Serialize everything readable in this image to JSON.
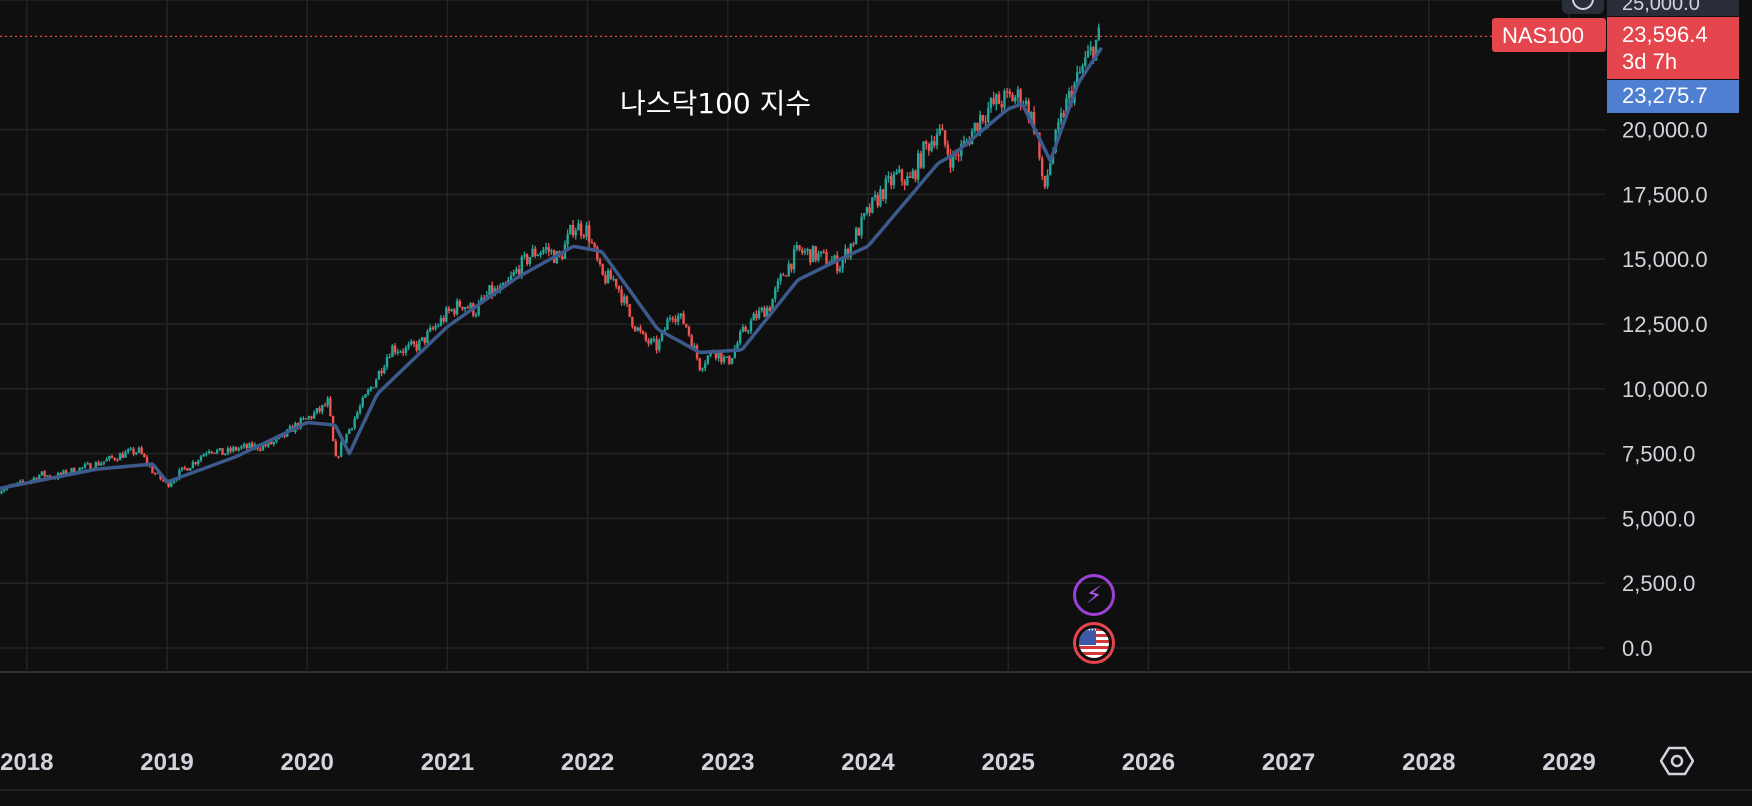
{
  "chart_data": {
    "type": "candlestick",
    "title": "나스닥100 지수",
    "symbol": "NAS100",
    "last_price": "23,596.4",
    "countdown": "3d 7h",
    "ma_value": "23,275.7",
    "partial_top_label": "25,000.0",
    "y_ticks": [
      "20,000.0",
      "17,500.0",
      "15,000.0",
      "12,500.0",
      "10,000.0",
      "7,500.0",
      "5,000.0",
      "2,500.0",
      "0.0"
    ],
    "x_ticks": [
      "2018",
      "2019",
      "2020",
      "2021",
      "2022",
      "2023",
      "2024",
      "2025",
      "2026",
      "2027",
      "2028",
      "2029"
    ],
    "ylim": [
      0,
      25000
    ],
    "xlim": [
      2017.8,
      2029.9
    ],
    "grid": true,
    "colors": {
      "background": "#0f0f0f",
      "grid": "#242424",
      "up": "#26a69a",
      "down": "#ef5350",
      "ma": "#3c5a8c",
      "price_line": "#e5454c",
      "axis_text": "#d1d4dc"
    },
    "series": [
      {
        "kind": "price",
        "approx_close": [
          [
            2017.8,
            6100
          ],
          [
            2018.0,
            6400
          ],
          [
            2018.1,
            6700
          ],
          [
            2018.2,
            6600
          ],
          [
            2018.3,
            6800
          ],
          [
            2018.5,
            7100
          ],
          [
            2018.7,
            7500
          ],
          [
            2018.8,
            7600
          ],
          [
            2018.9,
            6800
          ],
          [
            2019.0,
            6300
          ],
          [
            2019.1,
            6800
          ],
          [
            2019.2,
            7200
          ],
          [
            2019.3,
            7700
          ],
          [
            2019.4,
            7500
          ],
          [
            2019.5,
            7700
          ],
          [
            2019.7,
            7800
          ],
          [
            2019.8,
            8000
          ],
          [
            2019.9,
            8500
          ],
          [
            2020.1,
            9200
          ],
          [
            2020.15,
            9500
          ],
          [
            2020.2,
            7200
          ],
          [
            2020.25,
            7900
          ],
          [
            2020.35,
            9000
          ],
          [
            2020.5,
            10500
          ],
          [
            2020.6,
            11600
          ],
          [
            2020.7,
            11500
          ],
          [
            2020.8,
            11700
          ],
          [
            2020.9,
            12300
          ],
          [
            2021.0,
            12900
          ],
          [
            2021.1,
            13300
          ],
          [
            2021.2,
            13000
          ],
          [
            2021.3,
            13700
          ],
          [
            2021.4,
            13800
          ],
          [
            2021.5,
            14600
          ],
          [
            2021.6,
            15200
          ],
          [
            2021.7,
            15400
          ],
          [
            2021.8,
            15000
          ],
          [
            2021.9,
            16300
          ],
          [
            2022.0,
            16100
          ],
          [
            2022.1,
            14300
          ],
          [
            2022.2,
            14200
          ],
          [
            2022.3,
            12800
          ],
          [
            2022.4,
            11900
          ],
          [
            2022.5,
            11600
          ],
          [
            2022.6,
            13000
          ],
          [
            2022.7,
            12500
          ],
          [
            2022.8,
            10900
          ],
          [
            2022.9,
            11500
          ],
          [
            2023.0,
            11000
          ],
          [
            2023.1,
            12100
          ],
          [
            2023.2,
            12800
          ],
          [
            2023.3,
            13200
          ],
          [
            2023.4,
            14500
          ],
          [
            2023.5,
            15300
          ],
          [
            2023.6,
            15200
          ],
          [
            2023.7,
            15000
          ],
          [
            2023.8,
            14800
          ],
          [
            2023.9,
            15800
          ],
          [
            2024.0,
            16800
          ],
          [
            2024.1,
            17600
          ],
          [
            2024.2,
            18200
          ],
          [
            2024.3,
            18000
          ],
          [
            2024.4,
            19200
          ],
          [
            2024.5,
            20000
          ],
          [
            2024.6,
            18800
          ],
          [
            2024.7,
            19500
          ],
          [
            2024.8,
            20500
          ],
          [
            2024.9,
            21000
          ],
          [
            2025.0,
            21200
          ],
          [
            2025.1,
            21300
          ],
          [
            2025.2,
            20000
          ],
          [
            2025.25,
            17500
          ],
          [
            2025.3,
            18800
          ],
          [
            2025.4,
            20800
          ],
          [
            2025.5,
            22000
          ],
          [
            2025.55,
            22600
          ],
          [
            2025.6,
            23100
          ],
          [
            2025.65,
            23596.4
          ]
        ]
      },
      {
        "kind": "moving_average",
        "approx_values": [
          [
            2017.8,
            6150
          ],
          [
            2018.5,
            6900
          ],
          [
            2018.9,
            7100
          ],
          [
            2019.0,
            6400
          ],
          [
            2019.5,
            7400
          ],
          [
            2020.0,
            8700
          ],
          [
            2020.2,
            8600
          ],
          [
            2020.3,
            7500
          ],
          [
            2020.5,
            9800
          ],
          [
            2021.0,
            12400
          ],
          [
            2021.5,
            14300
          ],
          [
            2021.9,
            15500
          ],
          [
            2022.1,
            15300
          ],
          [
            2022.5,
            12300
          ],
          [
            2022.8,
            11400
          ],
          [
            2023.1,
            11500
          ],
          [
            2023.5,
            14200
          ],
          [
            2023.8,
            15000
          ],
          [
            2024.0,
            15500
          ],
          [
            2024.5,
            18700
          ],
          [
            2024.6,
            19000
          ],
          [
            2025.0,
            20800
          ],
          [
            2025.1,
            21000
          ],
          [
            2025.3,
            18800
          ],
          [
            2025.5,
            21800
          ],
          [
            2025.68,
            23275.7
          ]
        ]
      }
    ]
  }
}
